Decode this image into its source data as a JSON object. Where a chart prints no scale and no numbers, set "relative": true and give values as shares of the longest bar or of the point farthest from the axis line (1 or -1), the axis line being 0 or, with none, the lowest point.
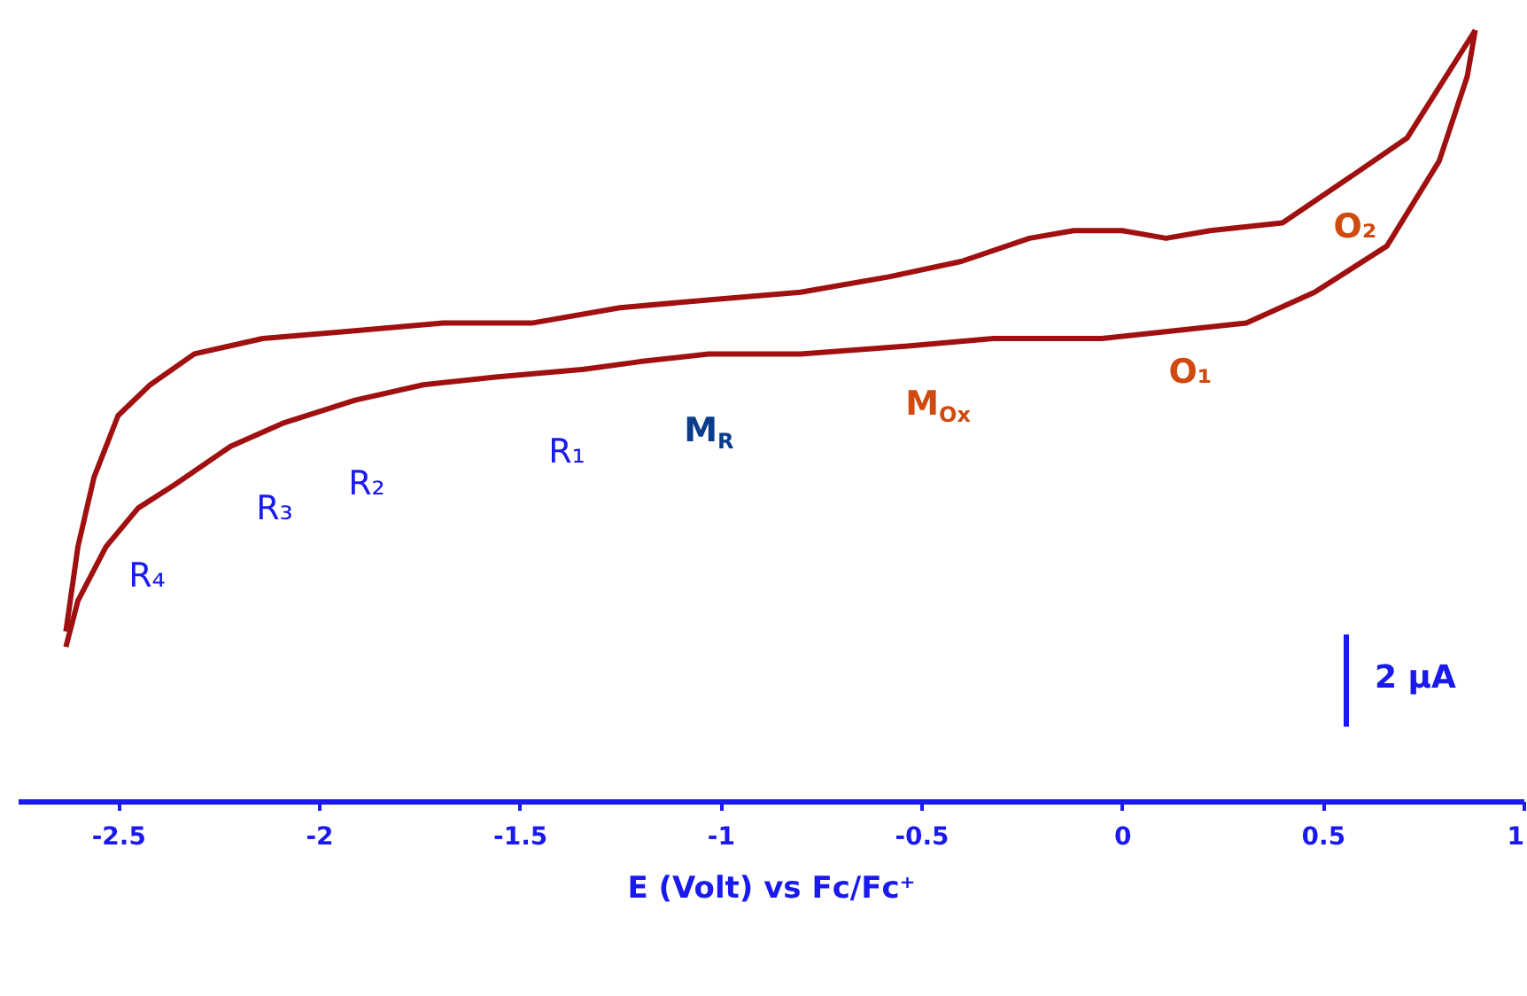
{
  "chart_data": {
    "type": "line",
    "relative": true,
    "xlabel": "E (Volt) vs Fc/Fc⁺",
    "xlim": [
      -2.75,
      1.0
    ],
    "xticks": [
      -2.5,
      -2,
      -1.5,
      -1,
      -0.5,
      0,
      0.5,
      1
    ],
    "series": [
      {
        "color": "#a01010",
        "x": [
          0.88,
          0.71,
          0.57,
          0.4,
          0.22,
          0.11,
          0.0,
          -0.12,
          -0.23,
          -0.4,
          -0.58,
          -0.8,
          -1.03,
          -1.25,
          -1.47,
          -1.69,
          -1.91,
          -2.14,
          -2.31,
          -2.42,
          -2.5,
          -2.56,
          -2.6,
          -2.63
        ],
        "values": [
          1.0,
          0.86,
          0.81,
          0.75,
          0.74,
          0.73,
          0.74,
          0.74,
          0.73,
          0.7,
          0.68,
          0.66,
          0.65,
          0.64,
          0.62,
          0.62,
          0.61,
          0.6,
          0.58,
          0.54,
          0.5,
          0.42,
          0.33,
          0.22
        ]
      },
      {
        "color": "#a01010",
        "x": [
          -2.63,
          -2.6,
          -2.53,
          -2.45,
          -2.36,
          -2.22,
          -2.09,
          -1.91,
          -1.74,
          -1.56,
          -1.34,
          -1.2,
          -1.03,
          -0.8,
          -0.54,
          -0.32,
          -0.05,
          0.13,
          0.31,
          0.48,
          0.66,
          0.79,
          0.86,
          0.88
        ],
        "values": [
          0.2,
          0.26,
          0.33,
          0.38,
          0.41,
          0.46,
          0.49,
          0.52,
          0.54,
          0.55,
          0.56,
          0.57,
          0.58,
          0.58,
          0.59,
          0.6,
          0.6,
          0.61,
          0.62,
          0.66,
          0.72,
          0.83,
          0.94,
          1.0
        ]
      }
    ],
    "annotations": [
      "R₄",
      "R₃",
      "R₂",
      "R₁",
      "M$_{R}$",
      "M$_{Ox}$",
      "O₁",
      "O₂",
      "2 μA"
    ]
  }
}
